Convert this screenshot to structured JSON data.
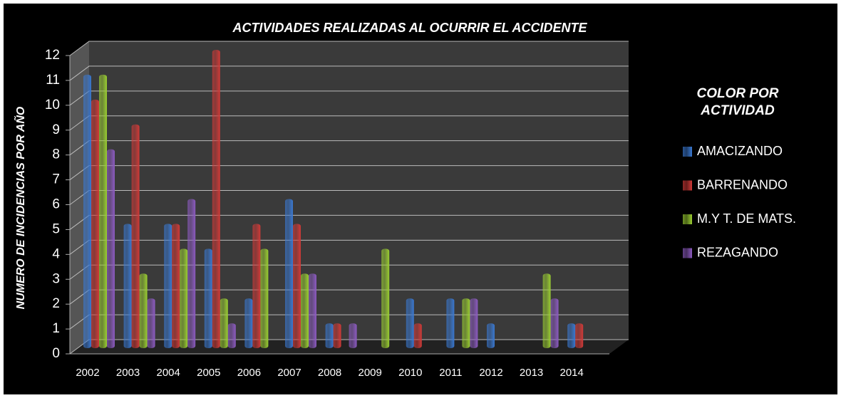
{
  "chart_data": {
    "type": "bar",
    "title": "ACTIVIDADES REALIZADAS AL OCURRIR EL ACCIDENTE",
    "y_label": "NUMERO DE INCIDENCIAS POR AÑO",
    "legend_title": "COLOR POR ACTIVIDAD",
    "categories": [
      "2002",
      "2003",
      "2004",
      "2005",
      "2006",
      "2007",
      "2008",
      "2009",
      "2010",
      "2011",
      "2012",
      "2013",
      "2014"
    ],
    "series": [
      {
        "name": "AMACIZANDO",
        "color": "#3a78d0",
        "values": [
          11,
          5,
          5,
          4,
          2,
          6,
          1,
          0,
          2,
          2,
          1,
          0,
          1
        ]
      },
      {
        "name": "BARRENANDO",
        "color": "#d03a38",
        "values": [
          10,
          9,
          5,
          12,
          5,
          5,
          1,
          0,
          1,
          0,
          0,
          0,
          1
        ]
      },
      {
        "name": "M.Y T. DE MATS.",
        "color": "#9acd32",
        "values": [
          11,
          3,
          4,
          2,
          4,
          3,
          0,
          4,
          0,
          2,
          0,
          3,
          0
        ]
      },
      {
        "name": "REZAGANDO",
        "color": "#8c5bc0",
        "values": [
          8,
          2,
          6,
          1,
          0,
          3,
          1,
          0,
          0,
          2,
          0,
          2,
          0
        ]
      }
    ],
    "ylim": [
      0,
      12
    ],
    "yticks": [
      0,
      1,
      2,
      3,
      4,
      5,
      6,
      7,
      8,
      9,
      10,
      11,
      12
    ],
    "grid": true,
    "legend": "right"
  }
}
